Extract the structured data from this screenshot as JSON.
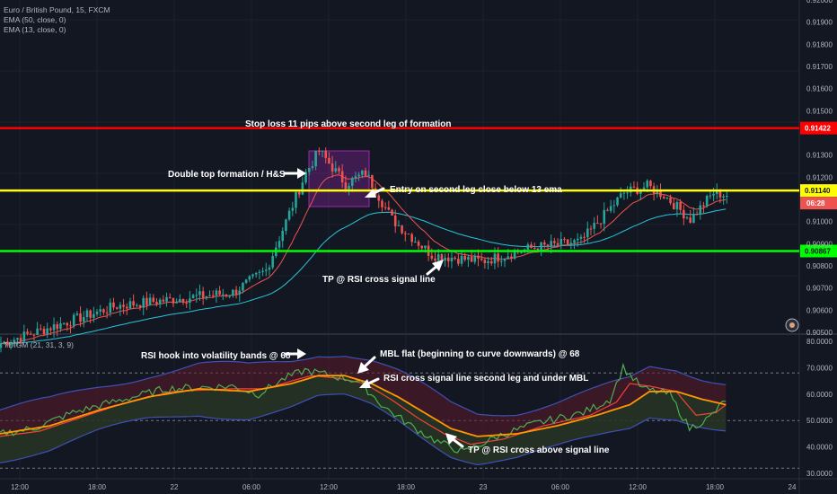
{
  "legend": {
    "symbol": "Euro / British Pound, 15, FXCM",
    "ema50": "EMA (50, close, 0)",
    "ema13": "EMA (13, close, 0)",
    "indicator": "TDIGM (21, 31, 3, 9)"
  },
  "colors": {
    "background": "#131722",
    "up": "#26a69a",
    "down": "#ef5350",
    "ema50": "#26c6da",
    "ema13": "#ef5350",
    "stop_line": "#ff0000",
    "entry_line": "#ffff00",
    "tp_line": "#00ff00",
    "box": "#9c27b0",
    "rsi": "#4caf50",
    "signal": "#f44336",
    "mbl": "#ff9800",
    "band": "#3f51b5"
  },
  "annotations": {
    "stop": "Stop loss 11 pips above second leg of formation",
    "double_top": "Double top formation / H&S",
    "entry": "Entry on second leg close below 13 ema",
    "tp_price": "TP @ RSI cross signal line",
    "rsi_hook": "RSI hook into volatility bands @ 68",
    "mbl_flat": "MBL flat (beginning to curve downwards) @ 68",
    "rsi_cross": "RSI cross signal line second leg and under MBL",
    "tp_rsi": "TP @ RSI cross above signal line"
  },
  "chart_data": [
    {
      "type": "candlestick",
      "title": "Euro / British Pound, 15, FXCM",
      "ylim": [
        0.905,
        0.92
      ],
      "price_axis_labels": [
        "0.92000",
        "0.91900",
        "0.91800",
        "0.91700",
        "0.91600",
        "0.91500",
        "0.91300",
        "0.91200",
        "0.91000",
        "0.90900",
        "0.90800",
        "0.90700",
        "0.90600",
        "0.90500"
      ],
      "horizontal_levels": [
        {
          "name": "stop-loss-line",
          "value": 0.91422,
          "label": "0.91422"
        },
        {
          "name": "entry-line",
          "value": 0.9114,
          "label": "0.91140"
        },
        {
          "name": "take-profit-line",
          "value": 0.90867,
          "label": "0.90867"
        }
      ],
      "countdown_label": "06:28",
      "key_points": [
        {
          "x": 0,
          "y": 0.9045
        },
        {
          "x": 35,
          "y": 0.9062
        },
        {
          "x": 70,
          "y": 0.9068
        },
        {
          "x": 80,
          "y": 0.9078
        },
        {
          "x": 92,
          "y": 0.9122
        },
        {
          "x": 96,
          "y": 0.9132
        },
        {
          "x": 104,
          "y": 0.9117
        },
        {
          "x": 110,
          "y": 0.9122
        },
        {
          "x": 118,
          "y": 0.9101
        },
        {
          "x": 130,
          "y": 0.9085
        },
        {
          "x": 145,
          "y": 0.9082
        },
        {
          "x": 160,
          "y": 0.9088
        },
        {
          "x": 175,
          "y": 0.9091
        },
        {
          "x": 188,
          "y": 0.9113
        },
        {
          "x": 195,
          "y": 0.9116
        },
        {
          "x": 200,
          "y": 0.9112
        },
        {
          "x": 208,
          "y": 0.9101
        },
        {
          "x": 215,
          "y": 0.9113
        },
        {
          "x": 219,
          "y": 0.9112
        }
      ]
    },
    {
      "type": "line",
      "title": "TDIGM (21, 31, 3, 9)",
      "ylim": [
        28,
        82
      ],
      "y_axis_labels": [
        "80.0000",
        "70.0000",
        "60.0000",
        "50.0000",
        "40.0000",
        "30.0000"
      ],
      "x_axis_labels": [
        "12:00",
        "18:00",
        "22",
        "06:00",
        "12:00",
        "18:00",
        "23",
        "06:00",
        "12:00",
        "18:00",
        "24"
      ],
      "reference_levels": [
        68,
        50,
        32
      ],
      "series": [
        {
          "name": "RSI",
          "points": [
            [
              0,
              45
            ],
            [
              10,
              47
            ],
            [
              22,
              53
            ],
            [
              34,
              57
            ],
            [
              50,
              62
            ],
            [
              70,
              63
            ],
            [
              78,
              60
            ],
            [
              86,
              66
            ],
            [
              92,
              69
            ],
            [
              100,
              67
            ],
            [
              108,
              65
            ],
            [
              116,
              55
            ],
            [
              124,
              48
            ],
            [
              132,
              42
            ],
            [
              140,
              38
            ],
            [
              150,
              44
            ],
            [
              162,
              49
            ],
            [
              176,
              53
            ],
            [
              184,
              58
            ],
            [
              188,
              70
            ],
            [
              194,
              62
            ],
            [
              202,
              60
            ],
            [
              208,
              47
            ],
            [
              214,
              51
            ],
            [
              219,
              58
            ]
          ]
        },
        {
          "name": "Signal",
          "points": [
            [
              0,
              44
            ],
            [
              12,
              46
            ],
            [
              24,
              51
            ],
            [
              36,
              56
            ],
            [
              52,
              61
            ],
            [
              70,
              62
            ],
            [
              80,
              62
            ],
            [
              88,
              65
            ],
            [
              94,
              67
            ],
            [
              102,
              66
            ],
            [
              110,
              64
            ],
            [
              118,
              58
            ],
            [
              126,
              51
            ],
            [
              134,
              45
            ],
            [
              142,
              41
            ],
            [
              152,
              43
            ],
            [
              164,
              48
            ],
            [
              178,
              52
            ],
            [
              186,
              57
            ],
            [
              190,
              64
            ],
            [
              196,
              63
            ],
            [
              204,
              61
            ],
            [
              210,
              52
            ],
            [
              216,
              53
            ],
            [
              219,
              56
            ]
          ]
        },
        {
          "name": "MBL",
          "points": [
            [
              0,
              45
            ],
            [
              15,
              48
            ],
            [
              30,
              54
            ],
            [
              45,
              59
            ],
            [
              60,
              62
            ],
            [
              75,
              61
            ],
            [
              88,
              64
            ],
            [
              96,
              67
            ],
            [
              104,
              67
            ],
            [
              112,
              64
            ],
            [
              120,
              59
            ],
            [
              128,
              53
            ],
            [
              136,
              47
            ],
            [
              144,
              44
            ],
            [
              156,
              45
            ],
            [
              168,
              48
            ],
            [
              180,
              52
            ],
            [
              190,
              56
            ],
            [
              196,
              61
            ],
            [
              204,
              61
            ],
            [
              212,
              58
            ],
            [
              219,
              56
            ]
          ]
        }
      ]
    }
  ]
}
